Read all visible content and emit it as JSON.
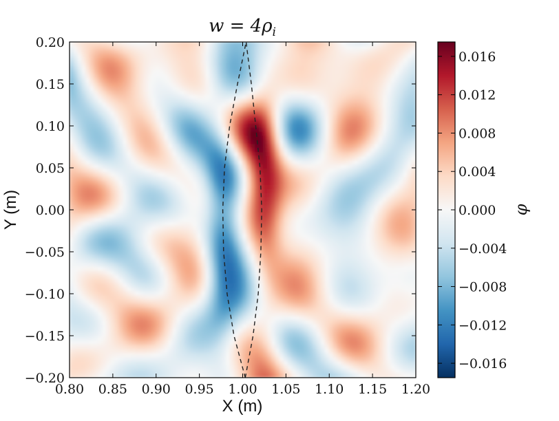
{
  "chart_data": {
    "type": "heatmap",
    "title": "w = 4ρ",
    "title_subscript": "i",
    "xlabel": "X (m)",
    "ylabel": "Y (m)",
    "colorbar_label": "φ",
    "xlim": [
      0.8,
      1.2
    ],
    "ylim": [
      -0.2,
      0.2
    ],
    "xticks": [
      "0.80",
      "0.85",
      "0.90",
      "0.95",
      "1.00",
      "1.05",
      "1.10",
      "1.15",
      "1.20"
    ],
    "yticks": [
      "−0.20",
      "−0.15",
      "−0.10",
      "−0.05",
      "0.00",
      "0.05",
      "0.10",
      "0.15",
      "0.20"
    ],
    "color_range": [
      -0.0175,
      0.0175
    ],
    "colorbar_ticks": [
      "0.016",
      "0.012",
      "0.008",
      "0.004",
      "0.000",
      "−0.004",
      "−0.008",
      "−0.012",
      "−0.016"
    ],
    "colorbar_tick_values": [
      0.016,
      0.012,
      0.008,
      0.004,
      0.0,
      -0.004,
      -0.008,
      -0.012,
      -0.016
    ],
    "colormap": [
      "#053061",
      "#2166ac",
      "#4393c3",
      "#92c5de",
      "#d1e5f0",
      "#f7f7f7",
      "#fddbc7",
      "#f4a582",
      "#d6604d",
      "#b2182b",
      "#67001f"
    ],
    "separatrix": {
      "style": "dashed",
      "color": "#222222",
      "left_branch": [
        [
          1.003,
          -0.2
        ],
        [
          0.99,
          -0.15
        ],
        [
          0.982,
          -0.1
        ],
        [
          0.978,
          -0.05
        ],
        [
          0.977,
          0.0
        ],
        [
          0.979,
          0.05
        ],
        [
          0.985,
          0.1
        ],
        [
          0.994,
          0.15
        ],
        [
          1.004,
          0.2
        ]
      ],
      "right_branch": [
        [
          1.003,
          -0.2
        ],
        [
          1.012,
          -0.15
        ],
        [
          1.018,
          -0.1
        ],
        [
          1.021,
          -0.05
        ],
        [
          1.022,
          0.0
        ],
        [
          1.02,
          0.05
        ],
        [
          1.015,
          0.1
        ],
        [
          1.01,
          0.15
        ],
        [
          1.004,
          0.2
        ]
      ]
    },
    "field_features": {
      "description_values": "phi is positive (red) just right of X=1.00 and negative (blue) just left, with small-scale turbulent fluctuations of about ±0.006 elsewhere",
      "peak_positive": 0.016,
      "peak_negative": -0.016
    }
  }
}
